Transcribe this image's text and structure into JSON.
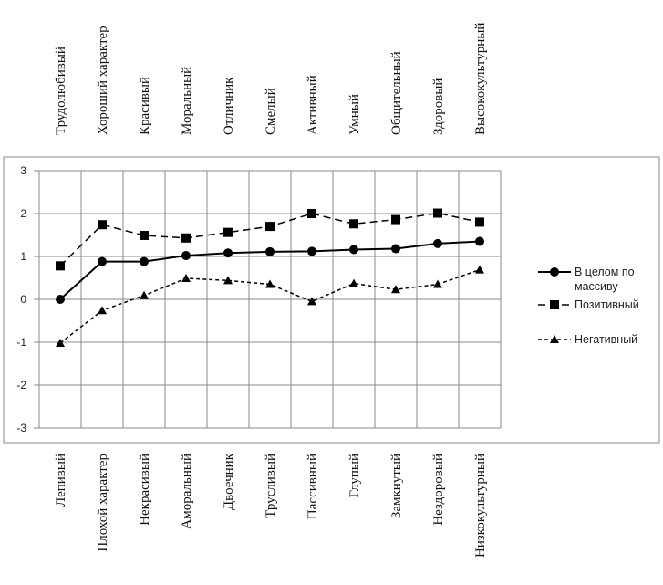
{
  "chart_data": {
    "type": "line",
    "categories_bottom": [
      "Лепивый",
      "Плохой характер",
      "Некрасивый",
      "Аморальный",
      "Двоечник",
      "Трусливый",
      "Пассивный",
      "Глупый",
      "Замкнутый",
      "Нездоровый",
      "Низкокультурный"
    ],
    "categories_top": [
      "Трудолюбивый",
      "Хороший характер",
      "Красивый",
      "Моральный",
      "Отличник",
      "Смелый",
      "Активный",
      "Умный",
      "Общительный",
      "Здоровый",
      "Высококультурный"
    ],
    "ylim": [
      -3,
      3
    ],
    "yticks": [
      "3",
      "2",
      "1",
      "0",
      "-1",
      "-2",
      "-3"
    ],
    "grid": true,
    "legend_position": "right",
    "series": [
      {
        "name": "В целом по массиву",
        "style": "solid",
        "marker": "circle",
        "values": [
          0.0,
          0.88,
          0.88,
          1.02,
          1.08,
          1.11,
          1.12,
          1.16,
          1.18,
          1.3,
          1.35
        ]
      },
      {
        "name": "Позитивный",
        "style": "dashed",
        "marker": "square",
        "values": [
          0.78,
          1.74,
          1.49,
          1.43,
          1.56,
          1.7,
          2.0,
          1.76,
          1.86,
          2.01,
          1.8
        ]
      },
      {
        "name": "Негативный",
        "style": "dotted",
        "marker": "triangle",
        "values": [
          -1.02,
          -0.26,
          0.09,
          0.49,
          0.44,
          0.35,
          -0.05,
          0.37,
          0.23,
          0.35,
          0.69
        ]
      }
    ],
    "legend_lines": [
      [
        "В целом по",
        "массиву"
      ],
      [
        "Позитивный"
      ],
      [
        "Негативный"
      ]
    ]
  }
}
